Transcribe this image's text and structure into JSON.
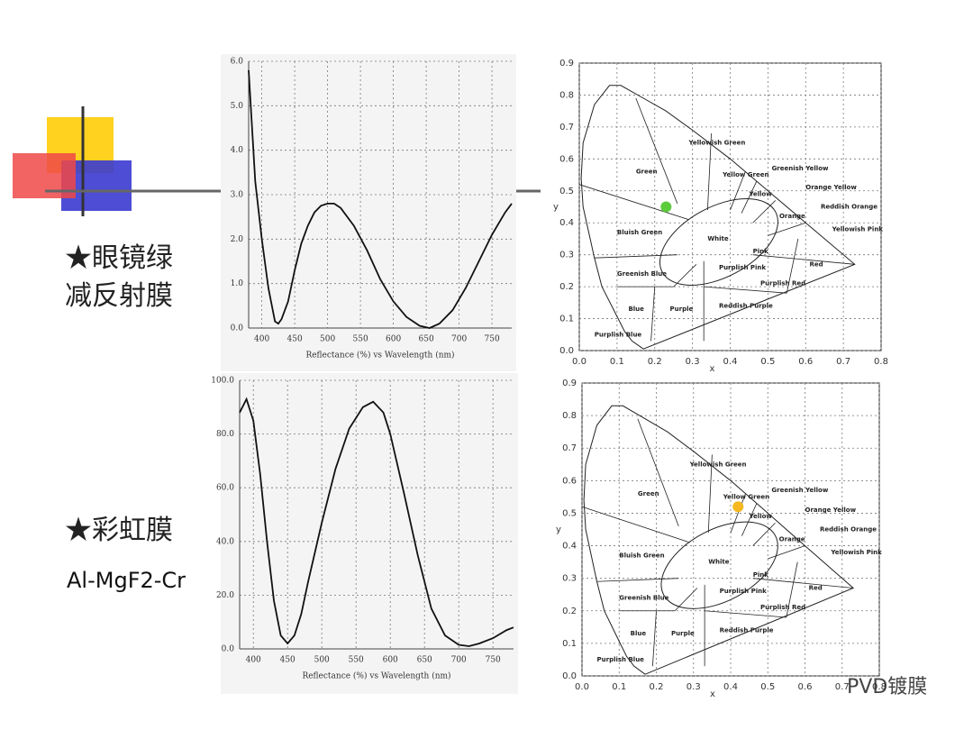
{
  "labels": {
    "item1": "★眼镜绿",
    "item1b": "减反射膜",
    "item2": "★彩虹膜",
    "item2b": "Al-MgF2-Cr",
    "watermark": "PVD镀膜"
  },
  "chart_data": [
    {
      "type": "line",
      "xlabel": "Reflectance (%)  vs  Wavelength (nm)",
      "color": "#111111",
      "grid": true,
      "x": [
        380,
        390,
        400,
        410,
        420,
        425,
        430,
        440,
        450,
        460,
        470,
        480,
        490,
        500,
        510,
        520,
        540,
        560,
        580,
        600,
        620,
        640,
        655,
        670,
        690,
        710,
        730,
        750,
        770,
        780
      ],
      "values": [
        5.8,
        3.3,
        2.0,
        0.9,
        0.15,
        0.1,
        0.2,
        0.6,
        1.3,
        1.9,
        2.3,
        2.6,
        2.75,
        2.8,
        2.8,
        2.7,
        2.3,
        1.75,
        1.1,
        0.6,
        0.25,
        0.05,
        0.0,
        0.1,
        0.4,
        0.9,
        1.5,
        2.1,
        2.6,
        2.8
      ],
      "xlim": [
        380,
        780
      ],
      "xticks": [
        400,
        450,
        500,
        550,
        600,
        650,
        700,
        750
      ],
      "ylim": [
        0,
        6
      ],
      "yticks": [
        {
          "value": 0,
          "label": "0.0"
        },
        {
          "value": 1,
          "label": "1.0"
        },
        {
          "value": 2,
          "label": "2.0"
        },
        {
          "value": 3,
          "label": "3.0"
        },
        {
          "value": 4,
          "label": "4.0"
        },
        {
          "value": 5,
          "label": "5.0"
        },
        {
          "value": 6,
          "label": "6.0"
        }
      ]
    },
    {
      "type": "scatter",
      "xlabel": "x",
      "ylabel": "y",
      "color": "#5ccc3c",
      "grid": true,
      "x": [
        0.23
      ],
      "values": [
        0.45
      ],
      "regions": [
        "Yellowish Green",
        "Green",
        "Yellow Green",
        "Greenish Yellow",
        "Yellow",
        "Orange Yellow",
        "Orange",
        "Reddish Orange",
        "Yellowish Pink",
        "Bluish Green",
        "White",
        "Pink",
        "Red",
        "Greenish Blue",
        "Purplish Pink",
        "Purplish Red",
        "Blue",
        "Purple",
        "Reddish Purple",
        "Purplish Blue"
      ],
      "xlim": [
        0,
        0.8
      ],
      "xticks": [
        {
          "value": 0,
          "label": "0.0"
        },
        {
          "value": 0.1,
          "label": "0.1"
        },
        {
          "value": 0.2,
          "label": "0.2"
        },
        {
          "value": 0.3,
          "label": "0.3"
        },
        {
          "value": 0.4,
          "label": "0.4"
        },
        {
          "value": 0.5,
          "label": "0.5"
        },
        {
          "value": 0.6,
          "label": "0.6"
        },
        {
          "value": 0.7,
          "label": "0.7"
        },
        {
          "value": 0.8,
          "label": "0.8"
        }
      ],
      "ylim": [
        0,
        0.9
      ],
      "yticks": [
        {
          "value": 0,
          "label": "0.0"
        },
        {
          "value": 0.1,
          "label": "0.1"
        },
        {
          "value": 0.2,
          "label": "0.2"
        },
        {
          "value": 0.3,
          "label": "0.3"
        },
        {
          "value": 0.4,
          "label": "0.4"
        },
        {
          "value": 0.5,
          "label": "0.5"
        },
        {
          "value": 0.6,
          "label": "0.6"
        },
        {
          "value": 0.7,
          "label": "0.7"
        },
        {
          "value": 0.8,
          "label": "0.8"
        },
        {
          "value": 0.9,
          "label": "0.9"
        }
      ]
    },
    {
      "type": "line",
      "xlabel": "Reflectance (%)  vs  Wavelength (nm)",
      "color": "#111111",
      "grid": true,
      "x": [
        380,
        390,
        400,
        410,
        420,
        430,
        440,
        450,
        460,
        470,
        480,
        500,
        520,
        540,
        560,
        575,
        590,
        600,
        620,
        640,
        660,
        680,
        700,
        715,
        730,
        750,
        770,
        780
      ],
      "values": [
        88,
        93,
        85,
        65,
        40,
        18,
        5,
        2,
        5,
        13,
        25,
        47,
        67,
        82,
        90,
        92,
        88,
        80,
        58,
        35,
        15,
        5,
        1.5,
        1,
        2,
        4,
        7,
        8
      ],
      "xlim": [
        380,
        780
      ],
      "xticks": [
        400,
        450,
        500,
        550,
        600,
        650,
        700,
        750
      ],
      "ylim": [
        0,
        100
      ],
      "yticks": [
        {
          "value": 0,
          "label": "0.0"
        },
        {
          "value": 20,
          "label": "20.0"
        },
        {
          "value": 40,
          "label": "40.0"
        },
        {
          "value": 60,
          "label": "60.0"
        },
        {
          "value": 80,
          "label": "80.0"
        },
        {
          "value": 100,
          "label": "100.0"
        }
      ]
    },
    {
      "type": "scatter",
      "xlabel": "x",
      "ylabel": "y",
      "color": "#f5b820",
      "grid": true,
      "x": [
        0.42
      ],
      "values": [
        0.52
      ],
      "regions": [
        "Yellowish Green",
        "Green",
        "Yellow Green",
        "Greenish Yellow",
        "Yellow",
        "Orange Yellow",
        "Orange",
        "Reddish Orange",
        "Yellowish Pink",
        "Bluish Green",
        "White",
        "Pink",
        "Red",
        "Greenish Blue",
        "Purplish Pink",
        "Purplish Red",
        "Blue",
        "Purple",
        "Reddish Purple",
        "Purplish Blue"
      ],
      "xlim": [
        0,
        0.8
      ],
      "xticks": [
        {
          "value": 0,
          "label": "0.0"
        },
        {
          "value": 0.1,
          "label": "0.1"
        },
        {
          "value": 0.2,
          "label": "0.2"
        },
        {
          "value": 0.3,
          "label": "0.3"
        },
        {
          "value": 0.4,
          "label": "0.4"
        },
        {
          "value": 0.5,
          "label": "0.5"
        },
        {
          "value": 0.6,
          "label": "0.6"
        },
        {
          "value": 0.7,
          "label": "0.7"
        },
        {
          "value": 0.8,
          "label": "0.8"
        }
      ],
      "ylim": [
        0,
        0.9
      ],
      "yticks": [
        {
          "value": 0,
          "label": "0.0"
        },
        {
          "value": 0.1,
          "label": "0.1"
        },
        {
          "value": 0.2,
          "label": "0.2"
        },
        {
          "value": 0.3,
          "label": "0.3"
        },
        {
          "value": 0.4,
          "label": "0.4"
        },
        {
          "value": 0.5,
          "label": "0.5"
        },
        {
          "value": 0.6,
          "label": "0.6"
        },
        {
          "value": 0.7,
          "label": "0.7"
        },
        {
          "value": 0.8,
          "label": "0.8"
        },
        {
          "value": 0.9,
          "label": "0.9"
        }
      ]
    }
  ]
}
